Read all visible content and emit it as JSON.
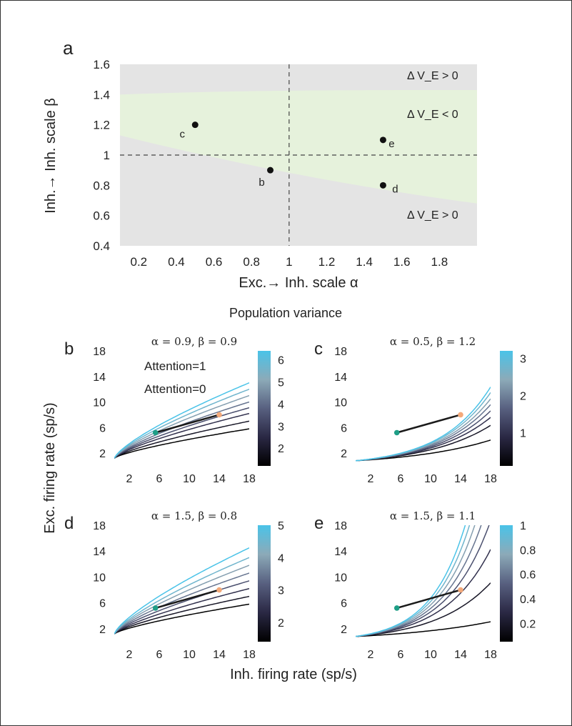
{
  "figure": {
    "panel_a": {
      "letter": "a",
      "xlabel": "Exc.→ Inh. scale α",
      "ylabel": "Inh.→ Inh. scale β",
      "xticks": [
        "0.2",
        "0.4",
        "0.6",
        "0.8",
        "1",
        "1.2",
        "1.4",
        "1.6",
        "1.8"
      ],
      "yticks": [
        "0.4",
        "0.6",
        "0.8",
        "1",
        "1.2",
        "1.4",
        "1.6"
      ],
      "region_top": "Δ V_E > 0",
      "region_mid": "Δ V_E < 0",
      "region_bot": "Δ V_E > 0",
      "colors": {
        "gray": "#e4e4e4",
        "green": "#e6f2dc"
      }
    },
    "section_title": "Population variance",
    "legend": {
      "attention1": "Attention=1",
      "attention0": "Attention=0",
      "color1": "#f3a97a",
      "color0": "#1e9e86"
    },
    "shared_ylabel": "Exc. firing rate (sp/s)",
    "shared_xlabel": "Inh. firing rate (sp/s)",
    "subpanels": [
      {
        "letter": "b",
        "title": "α = 0.9, β = 0.9",
        "colorbar_ticks": [
          "2",
          "3",
          "4",
          "5",
          "6"
        ]
      },
      {
        "letter": "c",
        "title": "α = 0.5, β = 1.2",
        "colorbar_ticks": [
          "1",
          "2",
          "3"
        ]
      },
      {
        "letter": "d",
        "title": "α = 1.5, β = 0.8",
        "colorbar_ticks": [
          "2",
          "3",
          "4",
          "5"
        ]
      },
      {
        "letter": "e",
        "title": "α = 1.5, β = 1.1",
        "colorbar_ticks": [
          "0.2",
          "0.4",
          "0.6",
          "0.8",
          "1"
        ]
      }
    ]
  },
  "chart_data": [
    {
      "type": "scatter",
      "panel": "a",
      "xlabel": "Exc.→ Inh. scale α",
      "ylabel": "Inh.→ Inh. scale β",
      "xlim": [
        0.1,
        2.0
      ],
      "ylim": [
        0.4,
        1.6
      ],
      "reference_lines": {
        "x": 1,
        "y": 1
      },
      "region_boundary_upper": {
        "x": [
          0.1,
          2.0
        ],
        "y": [
          1.4,
          1.43
        ]
      },
      "region_boundary_lower": {
        "x": [
          0.1,
          2.0
        ],
        "y": [
          1.13,
          0.68
        ]
      },
      "points": [
        {
          "label": "c",
          "x": 0.5,
          "y": 1.2
        },
        {
          "label": "b",
          "x": 0.9,
          "y": 0.9
        },
        {
          "label": "e",
          "x": 1.5,
          "y": 1.1
        },
        {
          "label": "d",
          "x": 1.5,
          "y": 0.8
        }
      ]
    },
    {
      "type": "line",
      "panel": "b",
      "xlim": [
        0,
        18
      ],
      "ylim": [
        0,
        18
      ],
      "xticks": [
        "2",
        "6",
        "10",
        "14",
        "18"
      ],
      "yticks": [
        "2",
        "6",
        "10",
        "14",
        "18"
      ],
      "curves": {
        "kind": "power",
        "count": 8,
        "ends_at_x18": [
          5.8,
          7.0,
          8.2,
          9.1,
          10.0,
          11.0,
          12.0,
          13.0
        ]
      },
      "colorbar_range": [
        1.2,
        6.4
      ],
      "attention_segment": {
        "attention0": [
          5.5,
          5.2
        ],
        "attention1": [
          14,
          8.0
        ]
      }
    },
    {
      "type": "line",
      "panel": "c",
      "xlim": [
        0,
        18
      ],
      "ylim": [
        0,
        18
      ],
      "xticks": [
        "2",
        "6",
        "10",
        "14",
        "18"
      ],
      "yticks": [
        "2",
        "6",
        "10",
        "14",
        "18"
      ],
      "curves": {
        "kind": "exp",
        "count": 8,
        "b": [
          0.09,
          0.115,
          0.125,
          0.132,
          0.138,
          0.143,
          0.148,
          0.152
        ]
      },
      "colorbar_range": [
        0.1,
        3.2
      ],
      "attention_segment": {
        "attention0": [
          5.5,
          5.2
        ],
        "attention1": [
          14,
          8.0
        ]
      }
    },
    {
      "type": "line",
      "panel": "d",
      "xlim": [
        0,
        18
      ],
      "ylim": [
        0,
        18
      ],
      "xticks": [
        "2",
        "6",
        "10",
        "14",
        "18"
      ],
      "yticks": [
        "2",
        "6",
        "10",
        "14",
        "18"
      ],
      "curves": {
        "kind": "power",
        "count": 8,
        "ends_at_x18": [
          5.8,
          7.0,
          8.2,
          9.4,
          10.6,
          11.8,
          13.0,
          14.5
        ]
      },
      "colorbar_range": [
        1.4,
        5.0
      ],
      "attention_segment": {
        "attention0": [
          5.5,
          5.2
        ],
        "attention1": [
          14,
          8.0
        ]
      }
    },
    {
      "type": "line",
      "panel": "e",
      "xlim": [
        0,
        18
      ],
      "ylim": [
        0,
        18
      ],
      "xticks": [
        "2",
        "6",
        "10",
        "14",
        "18"
      ],
      "yticks": [
        "2",
        "6",
        "10",
        "14",
        "18"
      ],
      "curves": {
        "kind": "exp",
        "count": 8,
        "b": [
          0.075,
          0.135,
          0.16,
          0.175,
          0.186,
          0.196,
          0.205,
          0.213
        ]
      },
      "colorbar_range": [
        0.05,
        1.0
      ],
      "attention_segment": {
        "attention0": [
          5.5,
          5.2
        ],
        "attention1": [
          14,
          8.0
        ]
      }
    }
  ]
}
